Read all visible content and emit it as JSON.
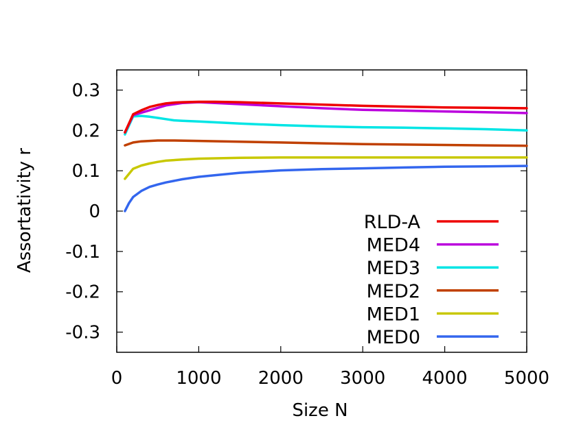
{
  "chart_data": {
    "type": "line",
    "title": "",
    "xlabel": "Size N",
    "ylabel": "Assortativity r",
    "xlim": [
      0,
      5000
    ],
    "ylim": [
      -0.35,
      0.35
    ],
    "xticks": [
      0,
      1000,
      2000,
      3000,
      4000,
      5000
    ],
    "yticks": [
      -0.3,
      -0.2,
      -0.1,
      0,
      0.1,
      0.2,
      0.3
    ],
    "xtick_labels": [
      "0",
      "1000",
      "2000",
      "3000",
      "4000",
      "5000"
    ],
    "ytick_labels": [
      "-0.3",
      "-0.2",
      "-0.1",
      "0",
      "0.1",
      "0.2",
      "0.3"
    ],
    "grid": false,
    "legend_position": "bottom-right",
    "series": [
      {
        "name": "RLD-A",
        "color": "#ee0000",
        "x": [
          100,
          200,
          300,
          400,
          500,
          600,
          700,
          800,
          1000,
          1200,
          1500,
          2000,
          2500,
          3000,
          3500,
          4000,
          4500,
          5000
        ],
        "y": [
          0.195,
          0.24,
          0.25,
          0.258,
          0.263,
          0.267,
          0.269,
          0.27,
          0.271,
          0.271,
          0.27,
          0.267,
          0.264,
          0.261,
          0.259,
          0.257,
          0.256,
          0.255
        ]
      },
      {
        "name": "MED4",
        "color": "#bb00dd",
        "x": [
          100,
          200,
          300,
          400,
          500,
          600,
          700,
          800,
          1000,
          1200,
          1500,
          2000,
          2500,
          3000,
          3500,
          4000,
          4500,
          5000
        ],
        "y": [
          0.195,
          0.238,
          0.244,
          0.25,
          0.256,
          0.262,
          0.265,
          0.268,
          0.27,
          0.268,
          0.265,
          0.26,
          0.255,
          0.251,
          0.249,
          0.247,
          0.245,
          0.243
        ]
      },
      {
        "name": "MED3",
        "color": "#00e5e5",
        "x": [
          100,
          200,
          300,
          400,
          500,
          600,
          700,
          800,
          1000,
          1500,
          2000,
          2500,
          3000,
          3500,
          4000,
          4500,
          5000
        ],
        "y": [
          0.19,
          0.235,
          0.236,
          0.234,
          0.231,
          0.228,
          0.225,
          0.224,
          0.222,
          0.217,
          0.213,
          0.21,
          0.208,
          0.207,
          0.205,
          0.203,
          0.2
        ]
      },
      {
        "name": "MED2",
        "color": "#c04000",
        "x": [
          100,
          200,
          300,
          400,
          500,
          700,
          1000,
          1500,
          2000,
          2500,
          3000,
          3500,
          4000,
          4500,
          5000
        ],
        "y": [
          0.163,
          0.17,
          0.173,
          0.174,
          0.175,
          0.175,
          0.174,
          0.172,
          0.17,
          0.168,
          0.166,
          0.165,
          0.164,
          0.163,
          0.162
        ]
      },
      {
        "name": "MED1",
        "color": "#c8c800",
        "x": [
          100,
          200,
          300,
          400,
          500,
          600,
          800,
          1000,
          1500,
          2000,
          2500,
          3000,
          3500,
          4000,
          4500,
          5000
        ],
        "y": [
          0.08,
          0.105,
          0.113,
          0.118,
          0.122,
          0.125,
          0.128,
          0.13,
          0.132,
          0.133,
          0.133,
          0.133,
          0.133,
          0.133,
          0.133,
          0.133
        ]
      },
      {
        "name": "MED0",
        "color": "#3366ee",
        "x": [
          100,
          150,
          200,
          300,
          400,
          500,
          600,
          800,
          1000,
          1200,
          1500,
          2000,
          2500,
          3000,
          3500,
          4000,
          4500,
          5000
        ],
        "y": [
          0.0,
          0.02,
          0.035,
          0.05,
          0.06,
          0.066,
          0.071,
          0.079,
          0.085,
          0.089,
          0.095,
          0.101,
          0.104,
          0.106,
          0.108,
          0.11,
          0.111,
          0.112
        ]
      }
    ]
  }
}
